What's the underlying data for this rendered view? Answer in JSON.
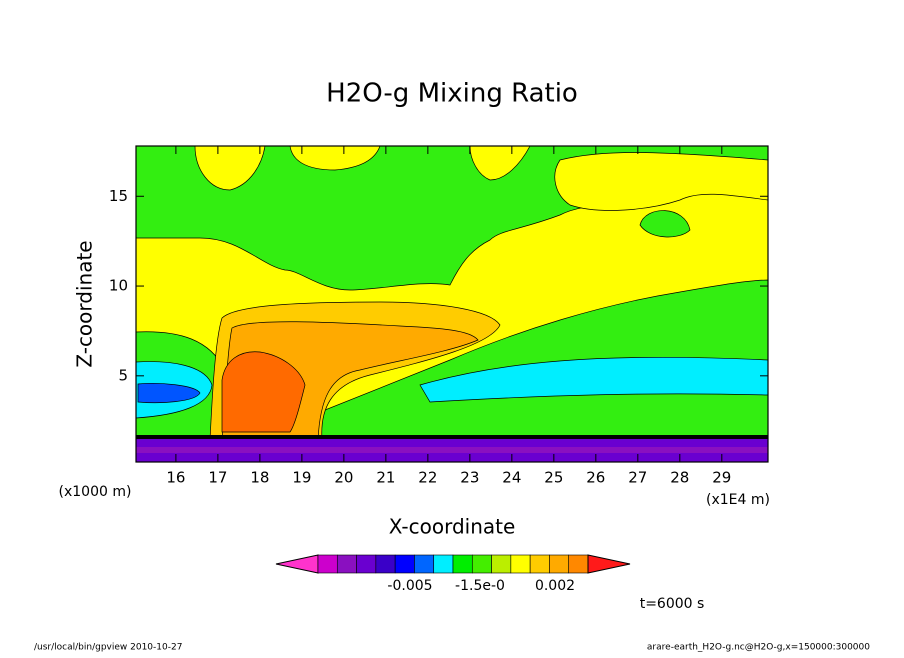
{
  "chart_data": {
    "type": "contour",
    "title": "H2O-g Mixing Ratio",
    "x_label": "X-coordinate",
    "y_label": "Z-coordinate",
    "x_unit": "(x1E4 m)",
    "y_unit": "(x1000 m)",
    "xlim": [
      15.05,
      30.1
    ],
    "xticks": [
      16,
      17,
      18,
      19,
      20,
      21,
      22,
      23,
      24,
      25,
      26,
      27,
      28,
      29
    ],
    "ylim": [
      0.2,
      17.8
    ],
    "yticks": [
      5,
      10,
      15
    ],
    "colorbar_colors": [
      "#ff33cc",
      "#cc00cc",
      "#8a10c0",
      "#6a00d0",
      "#3a00c8",
      "#0000ff",
      "#0066ff",
      "#00eeff",
      "#00ee00",
      "#44ee00",
      "#bbee00",
      "#ffff00",
      "#ffcc00",
      "#ffaa00",
      "#ff8800",
      "#ff1a1a"
    ],
    "colorbar_labels": [
      "-0.005",
      "-1.5e-0",
      "0.002"
    ],
    "time_label": "t=6000 s",
    "footer_left": "/usr/local/bin/gpview  2010-10-27",
    "footer_right": "arare-earth_H2O-g.nc@H2O-g,x=150000:300000"
  }
}
